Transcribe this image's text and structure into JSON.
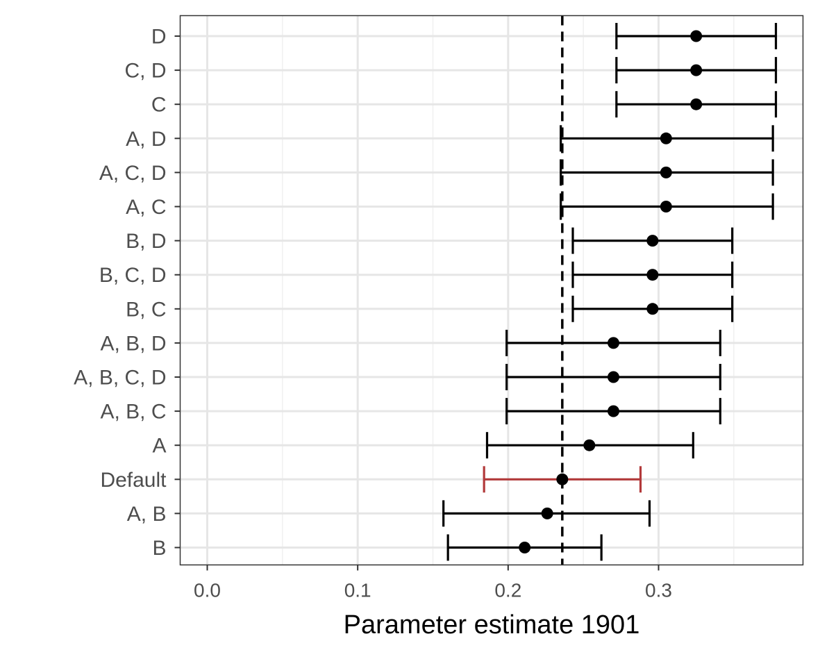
{
  "chart_data": {
    "type": "forest-plot",
    "xlabel": "Parameter estimate 1901",
    "ylabel": "",
    "xlim": [
      -0.018,
      0.396
    ],
    "x_ticks": [
      0.0,
      0.1,
      0.2,
      0.3
    ],
    "x_tick_labels": [
      "0.0",
      "0.1",
      "0.2",
      "0.3"
    ],
    "minor_gridlines_x": [
      0.05,
      0.15,
      0.25,
      0.35
    ],
    "grid": true,
    "reference_line": {
      "x": 0.236,
      "style": "dashed"
    },
    "colors": {
      "default": "#000000",
      "highlight": "#b2393a"
    },
    "rows": [
      {
        "label": "D",
        "estimate": 0.325,
        "lower": 0.272,
        "upper": 0.378,
        "highlight": false
      },
      {
        "label": "C, D",
        "estimate": 0.325,
        "lower": 0.272,
        "upper": 0.378,
        "highlight": false
      },
      {
        "label": "C",
        "estimate": 0.325,
        "lower": 0.272,
        "upper": 0.378,
        "highlight": false
      },
      {
        "label": "A, D",
        "estimate": 0.305,
        "lower": 0.235,
        "upper": 0.376,
        "highlight": false
      },
      {
        "label": "A, C, D",
        "estimate": 0.305,
        "lower": 0.235,
        "upper": 0.376,
        "highlight": false
      },
      {
        "label": "A, C",
        "estimate": 0.305,
        "lower": 0.235,
        "upper": 0.376,
        "highlight": false
      },
      {
        "label": "B, D",
        "estimate": 0.296,
        "lower": 0.243,
        "upper": 0.349,
        "highlight": false
      },
      {
        "label": "B, C, D",
        "estimate": 0.296,
        "lower": 0.243,
        "upper": 0.349,
        "highlight": false
      },
      {
        "label": "B, C",
        "estimate": 0.296,
        "lower": 0.243,
        "upper": 0.349,
        "highlight": false
      },
      {
        "label": "A, B, D",
        "estimate": 0.27,
        "lower": 0.199,
        "upper": 0.341,
        "highlight": false
      },
      {
        "label": "A, B, C, D",
        "estimate": 0.27,
        "lower": 0.199,
        "upper": 0.341,
        "highlight": false
      },
      {
        "label": "A, B, C",
        "estimate": 0.27,
        "lower": 0.199,
        "upper": 0.341,
        "highlight": false
      },
      {
        "label": "A",
        "estimate": 0.254,
        "lower": 0.186,
        "upper": 0.323,
        "highlight": false
      },
      {
        "label": "Default",
        "estimate": 0.236,
        "lower": 0.184,
        "upper": 0.288,
        "highlight": true
      },
      {
        "label": "A, B",
        "estimate": 0.226,
        "lower": 0.157,
        "upper": 0.294,
        "highlight": false
      },
      {
        "label": "B",
        "estimate": 0.211,
        "lower": 0.16,
        "upper": 0.262,
        "highlight": false
      }
    ]
  }
}
